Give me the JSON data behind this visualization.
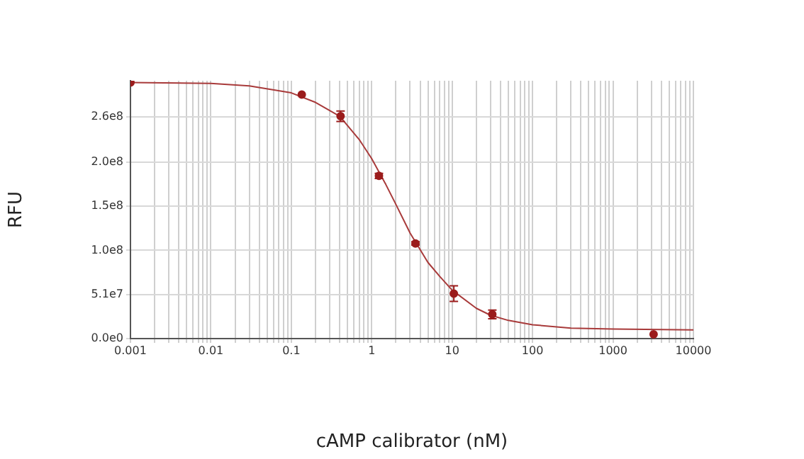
{
  "chart_data": {
    "type": "scatter",
    "xlabel": "cAMP calibrator (nM)",
    "ylabel": "RFU",
    "log": "x",
    "grid": true,
    "legend": false,
    "marker": "circle",
    "xlim": [
      0.001,
      10000
    ],
    "xticks": [
      {
        "value": 0.001,
        "label": "0.001"
      },
      {
        "value": 0.002,
        "label": null
      },
      {
        "value": 0.003,
        "label": null
      },
      {
        "value": 0.004,
        "label": null
      },
      {
        "value": 0.005,
        "label": null
      },
      {
        "value": 0.006,
        "label": null
      },
      {
        "value": 0.007,
        "label": null
      },
      {
        "value": 0.008,
        "label": null
      },
      {
        "value": 0.009,
        "label": null
      },
      {
        "value": 0.01,
        "label": "0.01"
      },
      {
        "value": 0.02,
        "label": null
      },
      {
        "value": 0.03,
        "label": null
      },
      {
        "value": 0.04,
        "label": null
      },
      {
        "value": 0.05,
        "label": null
      },
      {
        "value": 0.06,
        "label": null
      },
      {
        "value": 0.07,
        "label": null
      },
      {
        "value": 0.08,
        "label": null
      },
      {
        "value": 0.09,
        "label": null
      },
      {
        "value": 0.1,
        "label": "0.1"
      },
      {
        "value": 0.2,
        "label": null
      },
      {
        "value": 0.3,
        "label": null
      },
      {
        "value": 0.4,
        "label": null
      },
      {
        "value": 0.5,
        "label": null
      },
      {
        "value": 0.6,
        "label": null
      },
      {
        "value": 0.7,
        "label": null
      },
      {
        "value": 0.8,
        "label": null
      },
      {
        "value": 0.9,
        "label": null
      },
      {
        "value": 1,
        "label": "1"
      },
      {
        "value": 2,
        "label": null
      },
      {
        "value": 3,
        "label": null
      },
      {
        "value": 4,
        "label": null
      },
      {
        "value": 5,
        "label": null
      },
      {
        "value": 6,
        "label": null
      },
      {
        "value": 7,
        "label": null
      },
      {
        "value": 8,
        "label": null
      },
      {
        "value": 9,
        "label": null
      },
      {
        "value": 10,
        "label": "10"
      },
      {
        "value": 20,
        "label": null
      },
      {
        "value": 30,
        "label": null
      },
      {
        "value": 40,
        "label": null
      },
      {
        "value": 50,
        "label": null
      },
      {
        "value": 60,
        "label": null
      },
      {
        "value": 70,
        "label": null
      },
      {
        "value": 80,
        "label": null
      },
      {
        "value": 90,
        "label": null
      },
      {
        "value": 100,
        "label": "100"
      },
      {
        "value": 200,
        "label": null
      },
      {
        "value": 300,
        "label": null
      },
      {
        "value": 400,
        "label": null
      },
      {
        "value": 500,
        "label": null
      },
      {
        "value": 600,
        "label": null
      },
      {
        "value": 700,
        "label": null
      },
      {
        "value": 800,
        "label": null
      },
      {
        "value": 900,
        "label": null
      },
      {
        "value": 1000,
        "label": "1000"
      },
      {
        "value": 2000,
        "label": null
      },
      {
        "value": 3000,
        "label": null
      },
      {
        "value": 4000,
        "label": null
      },
      {
        "value": 5000,
        "label": null
      },
      {
        "value": 6000,
        "label": null
      },
      {
        "value": 7000,
        "label": null
      },
      {
        "value": 8000,
        "label": null
      },
      {
        "value": 9000,
        "label": null
      },
      {
        "value": 10000,
        "label": "10000"
      }
    ],
    "ylim": [
      0,
      298000000
    ],
    "yticks": [
      {
        "value": 0,
        "label": "0.0e0"
      },
      {
        "value": 51000000,
        "label": "5.1e7"
      },
      {
        "value": 102000000,
        "label": "1.0e8"
      },
      {
        "value": 153000000,
        "label": "1.5e8"
      },
      {
        "value": 204000000,
        "label": "2.0e8"
      },
      {
        "value": 256000000,
        "label": "2.6e8"
      }
    ],
    "series": [
      {
        "type": "scatter",
        "color": "#9b1c1c",
        "x": [
          0.001,
          0.135,
          0.41,
          1.23,
          3.5,
          10.5,
          31.6,
          3200
        ],
        "values": [
          296000000,
          282000000,
          257000000,
          188000000,
          110000000,
          52000000,
          28000000,
          5000000
        ],
        "errors": [
          null,
          null,
          6000000,
          3000000,
          2000000,
          9000000,
          5000000,
          null
        ]
      },
      {
        "type": "line",
        "color": "#a83a3a",
        "marker": "none",
        "x": [
          0.001,
          0.01,
          0.03,
          0.1,
          0.2,
          0.4,
          0.7,
          1,
          1.5,
          2,
          3,
          5,
          7,
          10,
          20,
          30,
          50,
          100,
          300,
          1000,
          10000
        ],
        "values": [
          296000000,
          295000000,
          292000000,
          284000000,
          273000000,
          257000000,
          230000000,
          208000000,
          178000000,
          155000000,
          122000000,
          88000000,
          72000000,
          56000000,
          35000000,
          27000000,
          21000000,
          16000000,
          12000000,
          11000000,
          10000000
        ]
      }
    ]
  }
}
